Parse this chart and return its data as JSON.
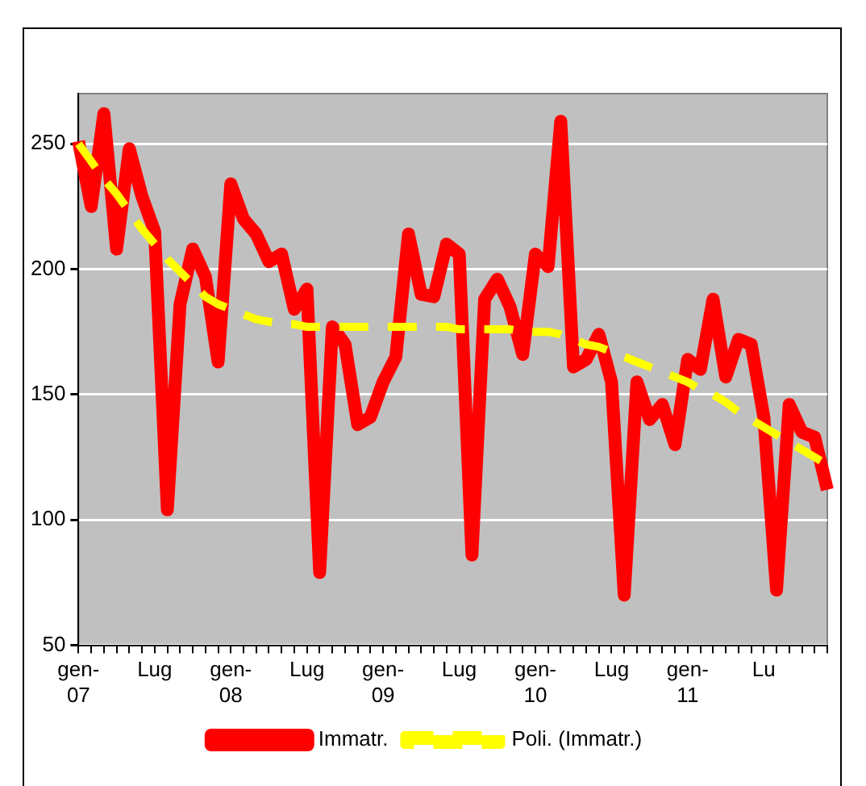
{
  "chart_data": {
    "type": "line",
    "categories": [
      "gen-07",
      null,
      null,
      null,
      null,
      null,
      "Lug",
      null,
      null,
      null,
      null,
      null,
      "gen-08",
      null,
      null,
      null,
      null,
      null,
      "Lug",
      null,
      null,
      null,
      null,
      null,
      "gen-09",
      null,
      null,
      null,
      null,
      null,
      "Lug",
      null,
      null,
      null,
      null,
      null,
      "gen-10",
      null,
      null,
      null,
      null,
      null,
      "Lug",
      null,
      null,
      null,
      null,
      null,
      "gen-11",
      null,
      null,
      null,
      null,
      null,
      "Lu",
      null,
      null,
      null,
      null,
      null
    ],
    "series": [
      {
        "name": "Immatr.",
        "color": "#ff0000",
        "line_style": "solid",
        "values": [
          251,
          225,
          262,
          208,
          248,
          229,
          215,
          104,
          186,
          208,
          197,
          163,
          234,
          220,
          214,
          203,
          206,
          184,
          192,
          79,
          177,
          170,
          138,
          141,
          155,
          165,
          214,
          190,
          189,
          210,
          206,
          86,
          188,
          196,
          185,
          166,
          206,
          201,
          259,
          161,
          164,
          174,
          155,
          70,
          155,
          140,
          146,
          130,
          164,
          160,
          188,
          157,
          172,
          170,
          141,
          72,
          146,
          135,
          133,
          112
        ]
      },
      {
        "name": "Poli. (Immatr.)",
        "color": "#ffff00",
        "line_style": "dashed",
        "values": [
          250,
          243,
          236,
          230,
          223,
          216,
          210,
          204,
          199,
          194,
          189,
          186,
          184,
          182,
          180,
          179,
          178,
          178,
          177,
          177,
          177,
          177,
          177,
          177,
          177,
          177,
          177,
          177,
          177,
          177,
          176,
          176,
          176,
          176,
          176,
          175,
          175,
          175,
          174,
          172,
          170,
          169,
          167,
          165,
          163,
          161,
          159,
          157,
          155,
          152,
          150,
          147,
          143,
          140,
          137,
          134,
          131,
          128,
          125,
          122
        ]
      }
    ],
    "ylim": [
      50,
      270
    ],
    "yticks": [
      50,
      100,
      150,
      200,
      250
    ],
    "grid": "y",
    "legend": "bottom",
    "marker": "none"
  }
}
